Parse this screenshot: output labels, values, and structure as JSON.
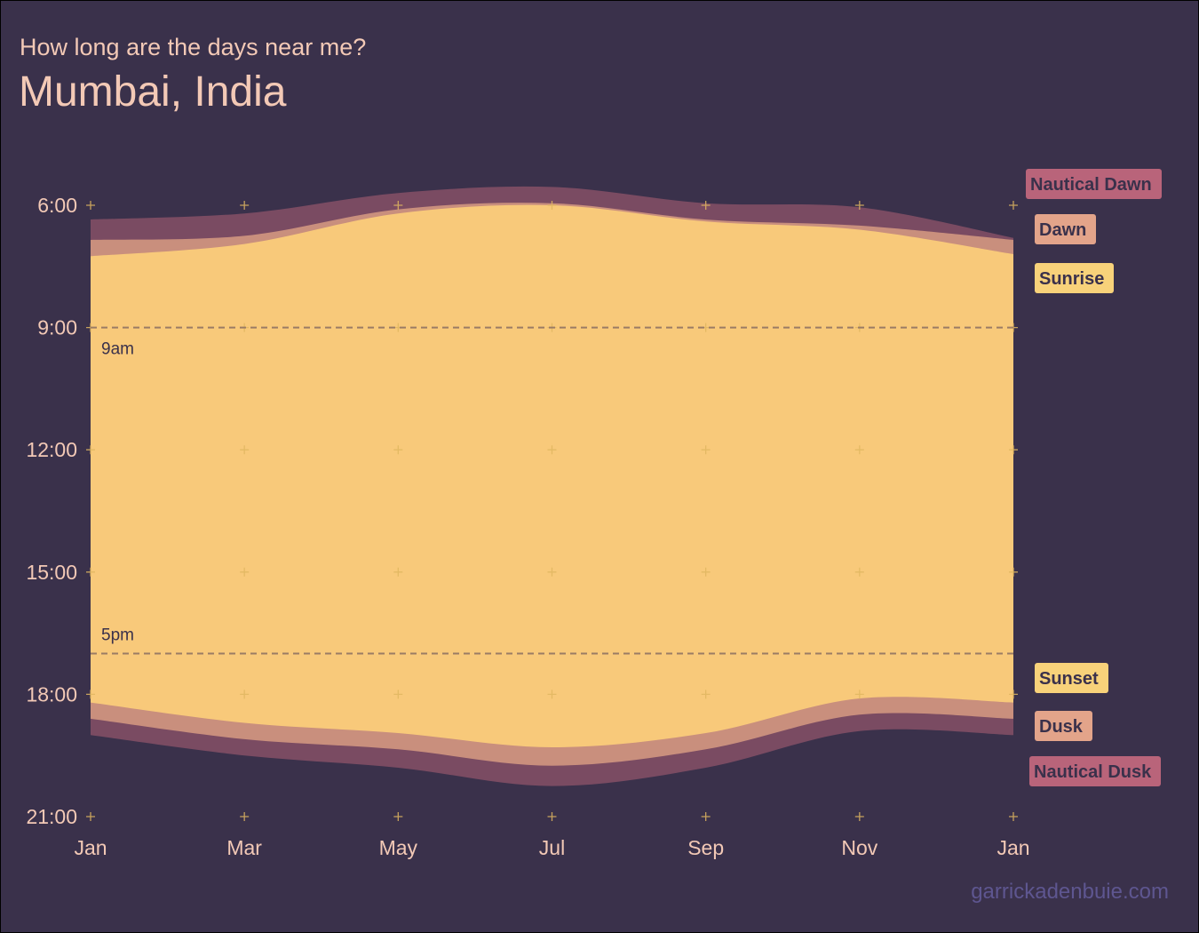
{
  "header": {
    "subtitle": "How long are the days near me?",
    "title": "Mumbai, India"
  },
  "credit": "garrickadenbuie.com",
  "colors": {
    "background": "#3a314b",
    "text": "#f3c9b6",
    "day": "#f8c97a",
    "twilight": "#c98f7d",
    "nautical": "#7a4b62",
    "grid_plus": "#e0b660",
    "ref_line": "#9a7c64",
    "label_sunrise": "#f8d27a",
    "label_dawn": "#e3a48a",
    "label_nautical": "#b9647a"
  },
  "chart_data": {
    "type": "area",
    "x_ticks": [
      "Jan",
      "Mar",
      "May",
      "Jul",
      "Sep",
      "Nov",
      "Jan"
    ],
    "y_ticks": [
      "6:00",
      "9:00",
      "12:00",
      "15:00",
      "18:00",
      "21:00"
    ],
    "ylim": [
      6,
      21
    ],
    "y_inverted": true,
    "grid": false,
    "x_months": [
      0,
      2,
      4,
      6,
      8,
      10,
      12
    ],
    "series": [
      {
        "name": "Nautical Dawn",
        "values": [
          6.35,
          6.2,
          5.7,
          5.55,
          5.95,
          6.05,
          6.8
        ]
      },
      {
        "name": "Dawn",
        "values": [
          6.85,
          6.75,
          6.1,
          5.95,
          6.35,
          6.5,
          6.85
        ]
      },
      {
        "name": "Sunrise",
        "values": [
          7.25,
          6.95,
          6.2,
          6.0,
          6.4,
          6.6,
          7.2
        ]
      },
      {
        "name": "Sunset",
        "values": [
          18.2,
          18.7,
          18.95,
          19.3,
          18.95,
          18.1,
          18.2
        ]
      },
      {
        "name": "Dusk",
        "values": [
          18.6,
          19.1,
          19.35,
          19.75,
          19.35,
          18.5,
          18.6
        ]
      },
      {
        "name": "Nautical Dusk",
        "values": [
          19.0,
          19.5,
          19.8,
          20.25,
          19.8,
          18.9,
          19.0
        ]
      }
    ],
    "reference_lines": [
      {
        "label": "9am",
        "y": 9
      },
      {
        "label": "5pm",
        "y": 17
      }
    ]
  }
}
